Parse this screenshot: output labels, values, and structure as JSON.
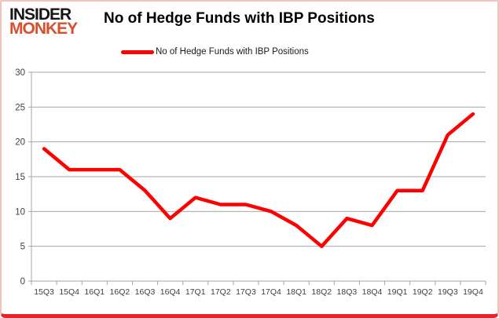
{
  "logo": {
    "line1": "INSIDER",
    "line2": "MONKEY"
  },
  "header": {
    "title": "No of Hedge Funds with IBP Positions"
  },
  "legend": {
    "label": "No of Hedge Funds with IBP Positions"
  },
  "colors": {
    "line": "#ff0000",
    "logo_accent": "#d94e2c",
    "grid": "#a6a6a6",
    "axis_text": "#404040",
    "border_side": "#eec3bc",
    "border_bottom": "#e8212a"
  },
  "chart_data": {
    "type": "line",
    "title": "No of Hedge Funds with IBP Positions",
    "legend_entries": [
      "No of Hedge Funds with IBP Positions"
    ],
    "legend_position": "top-center",
    "categories": [
      "15Q3",
      "15Q4",
      "16Q1",
      "16Q2",
      "16Q3",
      "16Q4",
      "17Q1",
      "17Q2",
      "17Q3",
      "17Q4",
      "18Q1",
      "18Q2",
      "18Q3",
      "18Q4",
      "19Q1",
      "19Q2",
      "19Q3",
      "19Q4"
    ],
    "values": [
      19,
      16,
      16,
      16,
      13,
      9,
      12,
      11,
      11,
      10,
      8,
      5,
      9,
      8,
      13,
      13,
      21,
      24
    ],
    "xlabel": "",
    "ylabel": "",
    "ylim": [
      0,
      30
    ],
    "yticks": [
      0,
      5,
      10,
      15,
      20,
      25,
      30
    ],
    "grid": true,
    "line_color": "#ff0000"
  }
}
